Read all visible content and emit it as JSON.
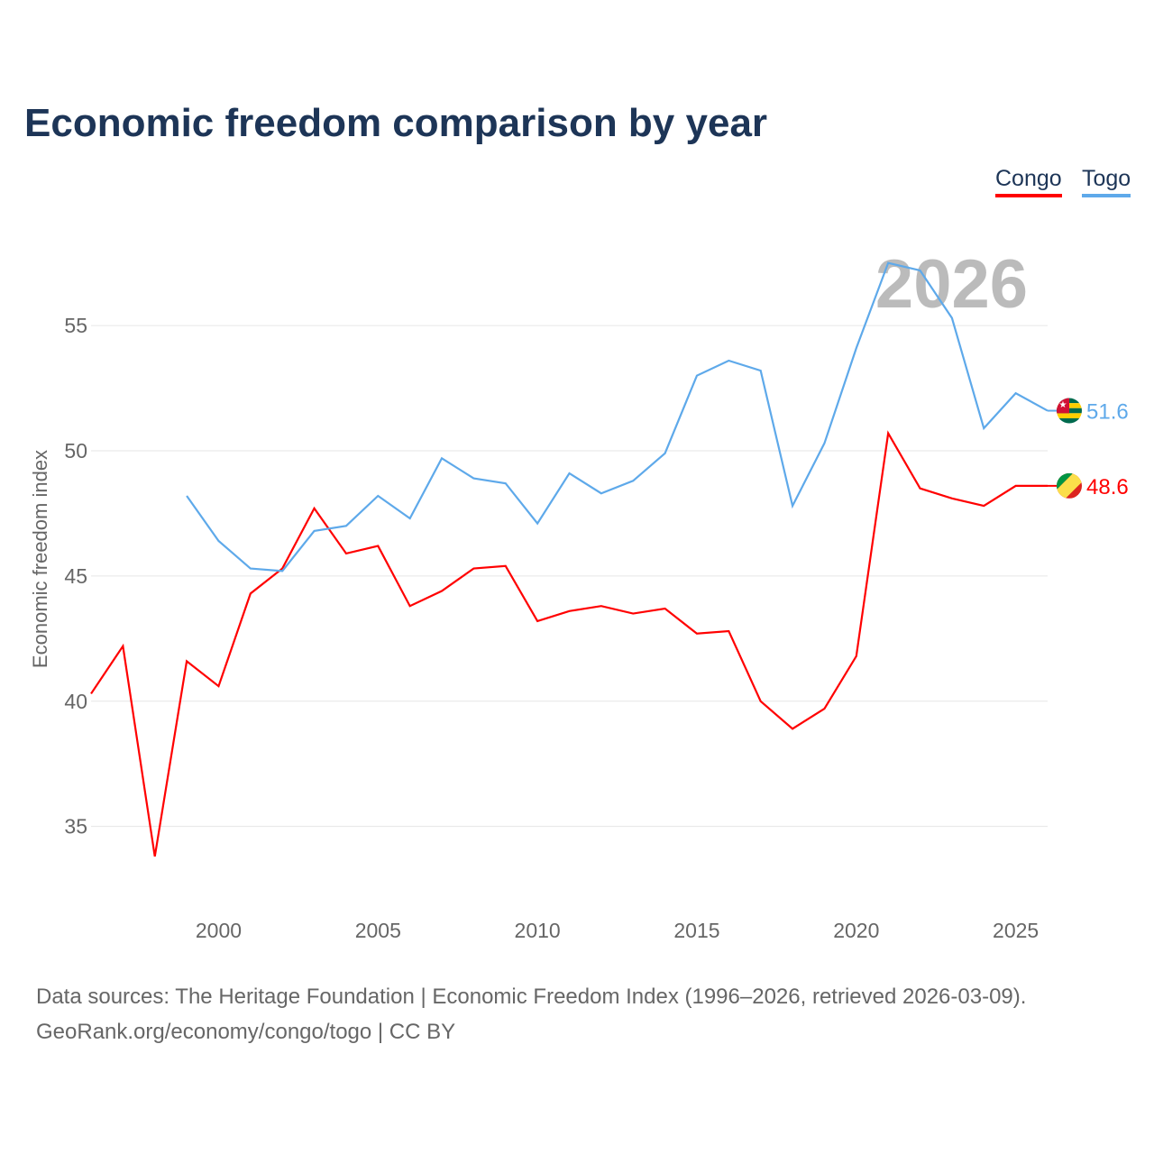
{
  "title": "Economic freedom comparison by year",
  "footer": {
    "line1": "Data sources: The Heritage Foundation | Economic Freedom Index (1996–2026, retrieved 2026-03-09).",
    "line2": "GeoRank.org/economy/congo/togo | CC BY"
  },
  "chart_data": {
    "type": "line",
    "title": "Economic freedom comparison by year",
    "xlabel": "",
    "ylabel": "Economic freedom index",
    "xlim": [
      1996,
      2026
    ],
    "ylim": [
      32,
      59
    ],
    "xticks": [
      2000,
      2005,
      2010,
      2015,
      2020,
      2025
    ],
    "yticks": [
      35,
      40,
      45,
      50,
      55
    ],
    "year_label": "2026",
    "legend_position": "top-right",
    "series": [
      {
        "name": "Congo",
        "color": "#ff0000",
        "end_label": "48.6",
        "flag": "congo-flag",
        "x": [
          1996,
          1997,
          1998,
          1999,
          2000,
          2001,
          2002,
          2003,
          2004,
          2005,
          2006,
          2007,
          2008,
          2009,
          2010,
          2011,
          2012,
          2013,
          2014,
          2015,
          2016,
          2017,
          2018,
          2019,
          2020,
          2021,
          2022,
          2023,
          2024,
          2025,
          2026
        ],
        "values": [
          40.3,
          42.2,
          33.8,
          41.6,
          40.6,
          44.3,
          45.3,
          47.7,
          45.9,
          46.2,
          43.8,
          44.4,
          45.3,
          45.4,
          43.2,
          43.6,
          43.8,
          43.5,
          43.7,
          42.7,
          42.8,
          40.0,
          38.9,
          39.7,
          41.8,
          50.7,
          48.5,
          48.1,
          47.8,
          48.6,
          48.6
        ]
      },
      {
        "name": "Togo",
        "color": "#5ea9ea",
        "end_label": "51.6",
        "flag": "togo-flag",
        "x": [
          1999,
          2000,
          2001,
          2002,
          2003,
          2004,
          2005,
          2006,
          2007,
          2008,
          2009,
          2010,
          2011,
          2012,
          2013,
          2014,
          2015,
          2016,
          2017,
          2018,
          2019,
          2020,
          2021,
          2022,
          2023,
          2024,
          2025,
          2026
        ],
        "values": [
          48.2,
          46.4,
          45.3,
          45.2,
          46.8,
          47.0,
          48.2,
          47.3,
          49.7,
          48.9,
          48.7,
          47.1,
          49.1,
          48.3,
          48.8,
          49.9,
          53.0,
          53.6,
          53.2,
          47.8,
          50.3,
          54.1,
          57.5,
          57.2,
          55.3,
          50.9,
          52.3,
          51.6
        ]
      }
    ]
  }
}
